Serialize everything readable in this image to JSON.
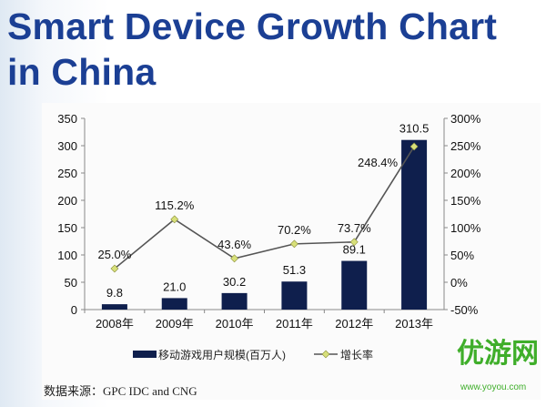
{
  "title_lines": [
    "Smart Device Growth Chart",
    "in China"
  ],
  "chart_data": {
    "type": "bar",
    "categories": [
      "2008年",
      "2009年",
      "2010年",
      "2011年",
      "2012年",
      "2013年"
    ],
    "series": [
      {
        "name": "移动游戏用户规模(百万人)",
        "type": "bar",
        "axis": "left",
        "values": [
          9.8,
          21.0,
          30.2,
          51.3,
          89.1,
          310.5
        ],
        "labels": [
          "9.8",
          "21.0",
          "30.2",
          "51.3",
          "89.1",
          "310.5"
        ],
        "color": "#0f1f4d"
      },
      {
        "name": "增长率",
        "type": "line",
        "axis": "right",
        "values": [
          25.0,
          115.2,
          43.6,
          70.2,
          73.7,
          248.4
        ],
        "labels": [
          "25.0%",
          "115.2%",
          "43.6%",
          "70.2%",
          "73.7%",
          "248.4%"
        ],
        "color": "#555555",
        "marker_color": "#d8e07a"
      }
    ],
    "y_left": {
      "range": [
        0,
        350
      ],
      "ticks": [
        "0",
        "50",
        "100",
        "150",
        "200",
        "250",
        "300",
        "350"
      ]
    },
    "y_right": {
      "range": [
        -50,
        300
      ],
      "ticks": [
        "-50%",
        "0%",
        "50%",
        "100%",
        "150%",
        "200%",
        "250%",
        "300%"
      ]
    },
    "grid": false,
    "legend_position": "bottom"
  },
  "source": "数据来源：GPC IDC and CNG",
  "watermark": {
    "text": "优游网",
    "url": "www.yoyou.com"
  }
}
